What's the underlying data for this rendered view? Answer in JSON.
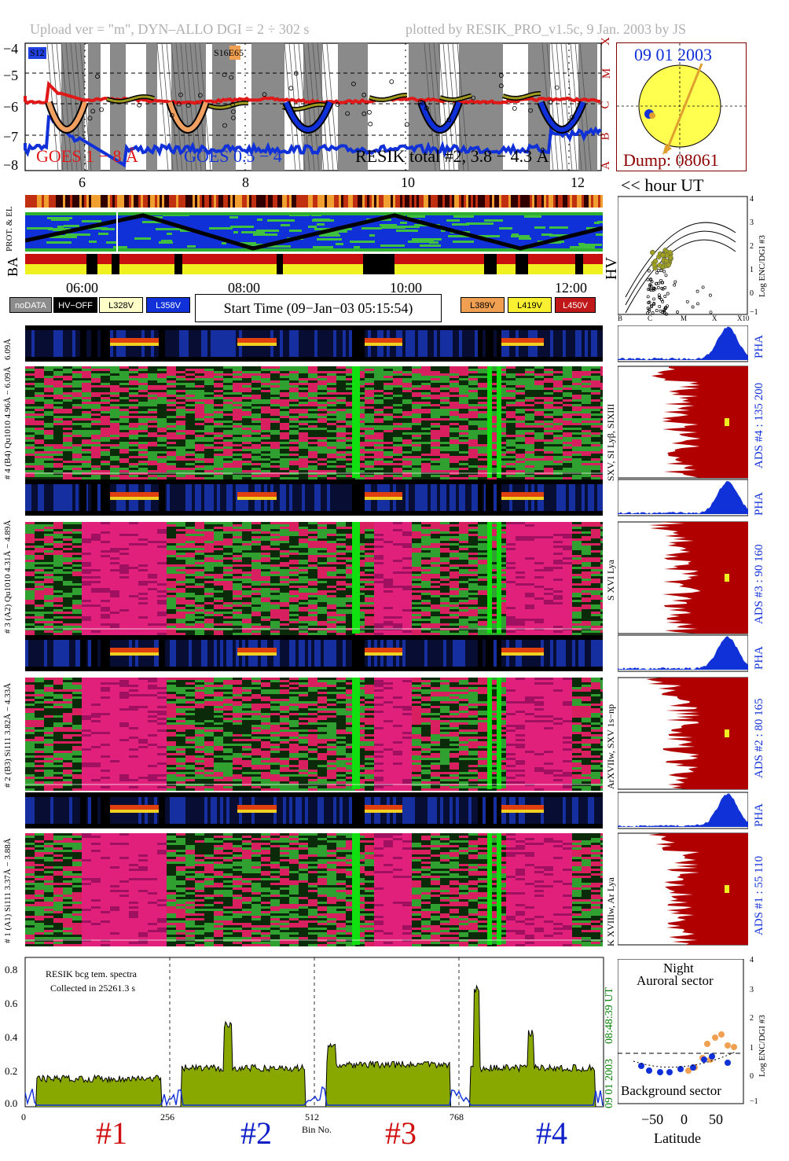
{
  "header": {
    "left": "Upload ver = \"m\", DYN–ALLO DGI =   2 ÷ 302 s",
    "right": "plotted by RESIK_PRO_v1.5c, 9 Jan. 2003 by JS"
  },
  "goes": {
    "yticks": [
      "−4",
      "−5",
      "−6",
      "−7",
      "−8"
    ],
    "class_letters": [
      "X",
      "M",
      "C",
      "B",
      "A"
    ],
    "label_goes_long": "GOES 1 − 8 Å",
    "label_goes_short": "GOES 0.5 − 4",
    "label_resik": "RESIK total #2, 3.8 − 4.3 Å",
    "marker_s12": "S12",
    "marker_s16": "S16E65",
    "hour_ticks": [
      "6",
      "8",
      "10",
      "12"
    ],
    "hour_label": "<< hour UT"
  },
  "sun": {
    "date": "09 01 2003",
    "dump": "Dump: 08061"
  },
  "strips": {
    "prot_label": "PROT. & EL",
    "ba_label": "BA",
    "hv_label": "HV",
    "time_ticks": [
      "06:00",
      "08:00",
      "10:00",
      "12:00"
    ]
  },
  "legend": {
    "items": [
      {
        "label": "noDATA",
        "bg": "#8c8c8c",
        "fg": "#ffffff"
      },
      {
        "label": "HV−OFF",
        "bg": "#000000",
        "fg": "#ffffff"
      },
      {
        "label": "L328V",
        "bg": "#ffffc8",
        "fg": "#000000"
      },
      {
        "label": "L358V",
        "bg": "#1030d8",
        "fg": "#ffffff"
      },
      {
        "label": "L389V",
        "bg": "#f0a050",
        "fg": "#000000"
      },
      {
        "label": "L419V",
        "bg": "#f8f030",
        "fg": "#000000"
      },
      {
        "label": "L450V",
        "bg": "#c01818",
        "fg": "#ffffff"
      }
    ],
    "start_time": "Start Time (09−Jan−03 05:15:54)"
  },
  "hv_plot": {
    "y_ticks": [
      "4",
      "3",
      "2",
      "1",
      "0",
      "−1"
    ],
    "x_ticks": [
      "B",
      "C",
      "M",
      "X",
      "X10"
    ],
    "ylabel": "Log ENC/DGI #3"
  },
  "channels": [
    {
      "spec_label": "# 4 (B4) Qu1010 4.96Å − 6.09Å",
      "ads": "ADS #4 :   135 200",
      "line": "SXV, SI Lyβ, SIXIII"
    },
    {
      "spec_label": "# 3 (A2) Qu1010 4.31Å − 4.89Å",
      "ads": "ADS #3 :   90 160",
      "line": "S XVI Lya"
    },
    {
      "spec_label": "# 2 (B3) Si111 3.82Å − 4.33Å",
      "ads": "ADS #2 :   80 165",
      "line": "ArXVIIw, SXV 1s−np"
    },
    {
      "spec_label": "# 1 (A1) Si111 3.37Å − 3.88Å",
      "ads": "ADS #1 :   55 110",
      "line": "K XVIIIw, Ar Lya"
    }
  ],
  "pha_label": "PHA",
  "bottom": {
    "note1": "RESIK bcg tem. spectra",
    "note2": "Collected in 25261.3 s",
    "yticks": [
      "0.8",
      "0.6",
      "0.4",
      "0.2",
      "0.0"
    ],
    "xticks": [
      "0",
      "256",
      "512",
      "768"
    ],
    "xlabel": "Bin No.",
    "section_labels": [
      "#1",
      "#2",
      "#3",
      "#4"
    ],
    "date": "09 01 2003",
    "time": "08:48:39 UT"
  },
  "aurora": {
    "night": "Night",
    "auroral": "Auroral sector",
    "background": "Background sector",
    "x_ticks": [
      "−50",
      "0",
      "50"
    ],
    "xlabel": "Latitude",
    "y_ticks": [
      "4",
      "3",
      "2",
      "1",
      "0",
      "−1"
    ],
    "ylabel": "Log ENC/DGI #3"
  },
  "colors": {
    "goes_long": "#e01818",
    "goes_short": "#1030d8",
    "resik": "#000000",
    "spectrum_fill": "#88a800",
    "red_label": "#d01010",
    "blue_label": "#1020c8",
    "pha_blue": "#1030d8",
    "ads_red": "#b00000",
    "sun_yellow": "#ffff50",
    "flare_orange": "#e0a030"
  }
}
